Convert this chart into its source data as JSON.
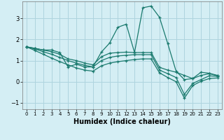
{
  "xlabel": "Humidex (Indice chaleur)",
  "xlim": [
    -0.5,
    23.5
  ],
  "ylim": [
    -1.3,
    3.8
  ],
  "yticks": [
    -1,
    0,
    1,
    2,
    3
  ],
  "xticks": [
    0,
    1,
    2,
    3,
    4,
    5,
    6,
    7,
    8,
    9,
    10,
    11,
    12,
    13,
    14,
    15,
    16,
    17,
    18,
    19,
    20,
    21,
    22,
    23
  ],
  "background_color": "#d4eef4",
  "grid_color": "#aed4de",
  "line_color": "#1a7a6e",
  "lines": [
    [
      1.65,
      1.58,
      1.5,
      1.5,
      1.38,
      0.7,
      0.83,
      0.7,
      0.7,
      1.4,
      1.83,
      2.58,
      2.72,
      1.38,
      3.5,
      3.58,
      3.05,
      1.8,
      0.5,
      0.1,
      0.15,
      0.45,
      0.4,
      0.3
    ],
    [
      1.65,
      1.58,
      1.5,
      1.42,
      1.3,
      1.08,
      1.0,
      0.88,
      0.8,
      1.18,
      1.35,
      1.38,
      1.4,
      1.38,
      1.38,
      1.38,
      0.68,
      0.55,
      0.45,
      0.3,
      0.15,
      0.3,
      0.38,
      0.28
    ],
    [
      1.65,
      1.55,
      1.42,
      1.3,
      1.15,
      1.0,
      0.88,
      0.78,
      0.7,
      1.0,
      1.15,
      1.22,
      1.25,
      1.28,
      1.28,
      1.28,
      0.55,
      0.38,
      0.2,
      -0.6,
      -0.08,
      0.1,
      0.28,
      0.25
    ],
    [
      1.65,
      1.48,
      1.3,
      1.12,
      0.95,
      0.8,
      0.65,
      0.55,
      0.5,
      0.75,
      0.88,
      0.95,
      1.0,
      1.05,
      1.08,
      1.08,
      0.42,
      0.2,
      0.0,
      -0.78,
      -0.18,
      0.02,
      0.15,
      0.18
    ]
  ]
}
